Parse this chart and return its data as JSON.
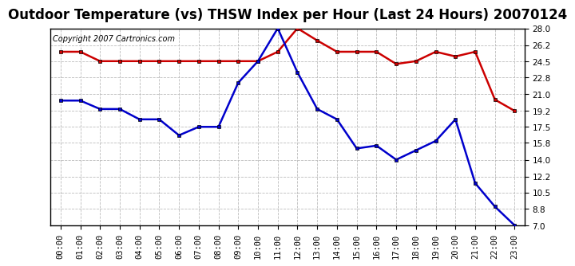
{
  "title": "Outdoor Temperature (vs) THSW Index per Hour (Last 24 Hours) 20070124",
  "copyright_text": "Copyright 2007 Cartronics.com",
  "hours": [
    "00:00",
    "01:00",
    "02:00",
    "03:00",
    "04:00",
    "05:00",
    "06:00",
    "07:00",
    "08:00",
    "09:00",
    "10:00",
    "11:00",
    "12:00",
    "13:00",
    "14:00",
    "15:00",
    "16:00",
    "17:00",
    "18:00",
    "19:00",
    "20:00",
    "21:00",
    "22:00",
    "23:00"
  ],
  "temp_data": [
    25.5,
    25.5,
    24.5,
    24.5,
    24.5,
    24.5,
    24.5,
    24.5,
    24.5,
    24.5,
    24.5,
    25.5,
    28.0,
    26.7,
    25.5,
    25.5,
    25.5,
    24.2,
    24.5,
    25.5,
    25.0,
    25.5,
    20.4,
    19.2
  ],
  "thsw_data": [
    20.3,
    20.3,
    19.4,
    19.4,
    18.3,
    18.3,
    16.6,
    17.5,
    17.5,
    22.2,
    24.5,
    28.0,
    23.3,
    19.4,
    18.3,
    15.2,
    15.5,
    14.0,
    15.0,
    16.0,
    18.3,
    11.5,
    9.0,
    7.0
  ],
  "temp_color": "#cc0000",
  "thsw_color": "#0000cc",
  "background_color": "#ffffff",
  "grid_color": "#bbbbbb",
  "ylim": [
    7.0,
    28.0
  ],
  "yticks": [
    7.0,
    8.8,
    10.5,
    12.2,
    14.0,
    15.8,
    17.5,
    19.2,
    21.0,
    22.8,
    24.5,
    26.2,
    28.0
  ],
  "title_fontsize": 12,
  "copyright_fontsize": 7,
  "tick_fontsize": 7.5,
  "marker": "s",
  "marker_size": 3.5,
  "linewidth": 1.8
}
